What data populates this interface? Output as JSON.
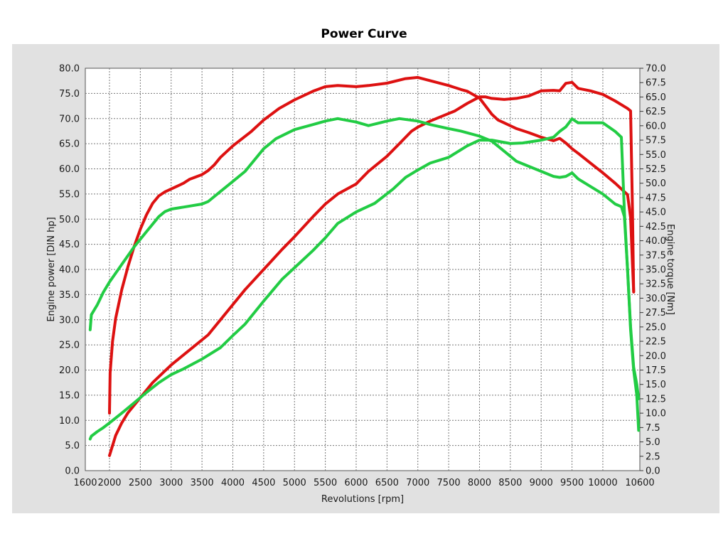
{
  "chart_data": {
    "type": "line",
    "title": "Power Curve",
    "xlabel": "Revolutions [rpm]",
    "ylabel_left": "Engine power [DIN hp]",
    "ylabel_right": "Engine torque [Nm]",
    "xlim": [
      1600,
      10600
    ],
    "ylim_left": [
      0,
      80
    ],
    "ylim_right": [
      0,
      70
    ],
    "grid": true,
    "x_ticks": [
      "1600",
      "2000",
      "2500",
      "3000",
      "3500",
      "4000",
      "4500",
      "5000",
      "5500",
      "6000",
      "6500",
      "7000",
      "7500",
      "8000",
      "8500",
      "9000",
      "9500",
      "10000",
      "10600"
    ],
    "y_ticks_left": [
      "0.0",
      "5.0",
      "10.0",
      "15.0",
      "20.0",
      "25.0",
      "30.0",
      "35.0",
      "40.0",
      "45.0",
      "50.0",
      "55.0",
      "60.0",
      "65.0",
      "70.0",
      "75.0",
      "80.0"
    ],
    "y_ticks_right": [
      "0.0",
      "2.5",
      "5.0",
      "7.5",
      "10.0",
      "12.5",
      "15.0",
      "17.5",
      "20.0",
      "22.5",
      "25.0",
      "27.5",
      "30.0",
      "32.5",
      "35.0",
      "37.5",
      "40.0",
      "42.5",
      "45.0",
      "47.5",
      "50.0",
      "52.5",
      "55.0",
      "57.5",
      "60.0",
      "62.5",
      "65.0",
      "67.5",
      "70.0"
    ],
    "series": [
      {
        "axis": "right",
        "color": "#dd1111",
        "x": [
          2000,
          2010,
          2050,
          2100,
          2200,
          2300,
          2400,
          2500,
          2600,
          2700,
          2800,
          2900,
          3000,
          3100,
          3200,
          3300,
          3500,
          3600,
          3700,
          3800,
          4000,
          4300,
          4500,
          4750,
          5000,
          5300,
          5500,
          5700,
          6000,
          6200,
          6500,
          6800,
          7000,
          7500,
          7700,
          7800,
          8000,
          8200,
          8300,
          8400,
          8600,
          8800,
          9000,
          9200,
          9300,
          9400,
          9500,
          9600,
          9800,
          10000,
          10200,
          10400,
          10450,
          10480,
          10500
        ],
        "values": [
          10.0,
          17.0,
          22.5,
          26.5,
          31.5,
          35.5,
          39.0,
          42.0,
          44.5,
          46.5,
          47.8,
          48.5,
          49.0,
          49.5,
          50.0,
          50.7,
          51.5,
          52.2,
          53.2,
          54.5,
          56.5,
          59.0,
          61.0,
          63.0,
          64.5,
          66.0,
          66.8,
          67.0,
          66.8,
          67.0,
          67.4,
          68.2,
          68.4,
          67.0,
          66.3,
          66.0,
          64.8,
          62.0,
          61.0,
          60.5,
          59.5,
          58.8,
          58.0,
          57.4,
          57.8,
          57.0,
          56.0,
          55.2,
          53.5,
          51.8,
          50.0,
          48.0,
          44.0,
          36.0,
          31.2
        ]
      },
      {
        "axis": "left",
        "color": "#dd1111",
        "x": [
          2000,
          2100,
          2200,
          2300,
          2500,
          2700,
          3000,
          3300,
          3600,
          3800,
          4000,
          4200,
          4500,
          4800,
          5000,
          5300,
          5500,
          5700,
          6000,
          6200,
          6500,
          6700,
          6900,
          7000,
          7200,
          7400,
          7600,
          7800,
          8000,
          8100,
          8200,
          8400,
          8600,
          8800,
          9000,
          9200,
          9300,
          9400,
          9500,
          9600,
          9800,
          10000,
          10200,
          10400,
          10450,
          10480,
          10500
        ],
        "values": [
          3.0,
          7.0,
          9.5,
          11.5,
          14.5,
          17.5,
          21.0,
          24.0,
          27.0,
          30.0,
          33.0,
          36.0,
          40.0,
          44.0,
          46.5,
          50.5,
          53.0,
          55.0,
          57.0,
          59.5,
          62.5,
          65.0,
          67.5,
          68.3,
          69.5,
          70.5,
          71.5,
          73.0,
          74.3,
          74.3,
          74.0,
          73.8,
          74.0,
          74.5,
          75.5,
          75.6,
          75.5,
          77.0,
          77.2,
          76.0,
          75.5,
          74.8,
          73.5,
          72.0,
          71.5,
          52.0,
          35.5
        ]
      },
      {
        "axis": "left",
        "color": "#22cc44",
        "x": [
          1680,
          1700,
          1800,
          1900,
          2000,
          2200,
          2400,
          2600,
          2800,
          2900,
          3000,
          3200,
          3500,
          3600,
          3800,
          4000,
          4200,
          4500,
          4700,
          5000,
          5300,
          5500,
          5700,
          6000,
          6200,
          6500,
          6700,
          7000,
          7200,
          7500,
          7700,
          8000,
          8200,
          8400,
          8600,
          8800,
          9000,
          9200,
          9300,
          9400,
          9500,
          9600,
          9800,
          10000,
          10200,
          10300,
          10350,
          10400,
          10450,
          10500,
          10550,
          10580
        ],
        "values": [
          28.0,
          31.0,
          33.0,
          35.5,
          37.5,
          41.0,
          44.5,
          47.5,
          50.5,
          51.5,
          52.0,
          52.4,
          53.0,
          53.5,
          55.5,
          57.5,
          59.5,
          64.0,
          66.0,
          67.8,
          68.8,
          69.5,
          70.0,
          69.3,
          68.6,
          69.5,
          70.0,
          69.5,
          68.8,
          68.0,
          67.5,
          66.5,
          65.5,
          63.5,
          61.5,
          60.5,
          59.5,
          58.5,
          58.3,
          58.5,
          59.2,
          58.0,
          56.5,
          55.0,
          53.0,
          52.5,
          50.5,
          40.0,
          28.0,
          20.0,
          15.0,
          8.0
        ]
      },
      {
        "axis": "right",
        "color": "#22cc44",
        "x": [
          1680,
          1700,
          1800,
          1900,
          2000,
          2200,
          2400,
          2600,
          2800,
          3000,
          3200,
          3500,
          3800,
          4000,
          4200,
          4500,
          4800,
          5000,
          5300,
          5500,
          5700,
          6000,
          6300,
          6600,
          6800,
          7000,
          7200,
          7500,
          7800,
          8000,
          8200,
          8500,
          8700,
          9000,
          9200,
          9300,
          9400,
          9500,
          9600,
          9800,
          10000,
          10200,
          10300,
          10350,
          10400,
          10450,
          10500,
          10550,
          10580
        ],
        "values": [
          5.5,
          6.0,
          6.8,
          7.5,
          8.3,
          10.0,
          11.8,
          13.6,
          15.3,
          16.7,
          17.7,
          19.4,
          21.4,
          23.5,
          25.5,
          29.5,
          33.3,
          35.3,
          38.3,
          40.5,
          43.0,
          45.0,
          46.5,
          49.0,
          51.0,
          52.3,
          53.5,
          54.5,
          56.5,
          57.5,
          57.5,
          56.9,
          57.0,
          57.5,
          58.0,
          59.0,
          59.8,
          61.2,
          60.5,
          60.5,
          60.5,
          59.0,
          58.0,
          45.0,
          35.0,
          25.0,
          18.0,
          15.0,
          12.5
        ]
      }
    ]
  }
}
